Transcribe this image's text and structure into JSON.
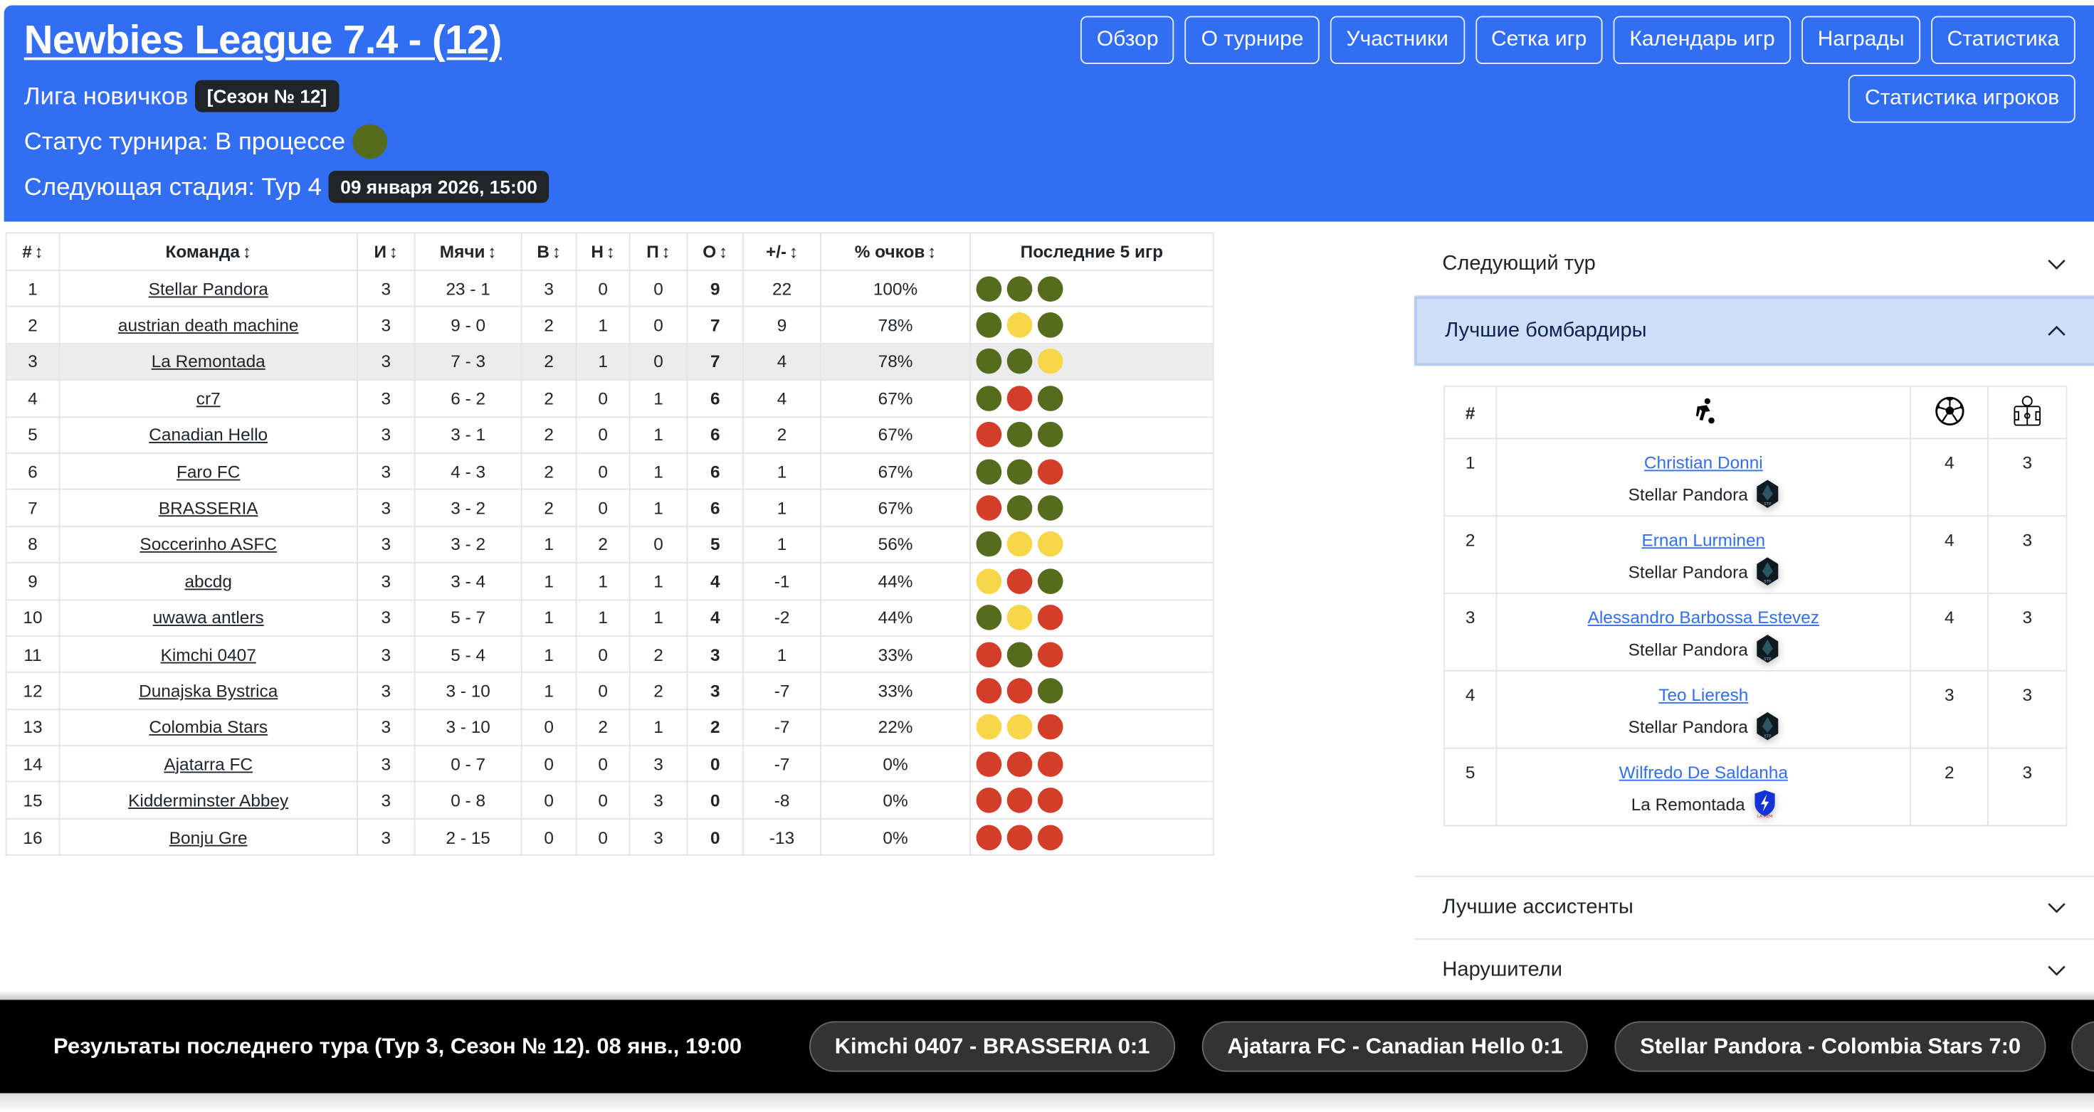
{
  "header": {
    "title": "Newbies League 7.4 - (12)",
    "subtitle": "Лига новичков",
    "season_badge": "[Сезон № 12]",
    "status_text": "Статус турнира: В процессе",
    "status_color": "#556b1e",
    "next_stage_text": "Следующая стадия: Тур 4",
    "next_stage_date": "09 января 2026, 15:00",
    "background_color": "#326ef4"
  },
  "nav": {
    "buttons": [
      "Обзор",
      "О турнире",
      "Участники",
      "Сетка игр",
      "Календарь игр",
      "Награды",
      "Статистика"
    ],
    "second_row": "Статистика игроков"
  },
  "standings": {
    "columns": [
      "#",
      "Команда",
      "И",
      "Мячи",
      "В",
      "Н",
      "П",
      "О",
      "+/-",
      "% очков",
      "Последние 5 игр"
    ],
    "sort_icon": "↕",
    "form_colors": {
      "W": "#556b1e",
      "D": "#f7d64a",
      "L": "#d43d2a"
    },
    "highlighted_row": 3,
    "rows": [
      {
        "pos": "1",
        "team": "Stellar Pandora",
        "played": "3",
        "goals": "23 - 1",
        "w": "3",
        "d": "0",
        "l": "0",
        "pts": "9",
        "diff": "22",
        "pct": "100%",
        "form": [
          "W",
          "W",
          "W"
        ]
      },
      {
        "pos": "2",
        "team": "austrian death machine",
        "played": "3",
        "goals": "9 - 0",
        "w": "2",
        "d": "1",
        "l": "0",
        "pts": "7",
        "diff": "9",
        "pct": "78%",
        "form": [
          "W",
          "D",
          "W"
        ]
      },
      {
        "pos": "3",
        "team": "La Remontada",
        "played": "3",
        "goals": "7 - 3",
        "w": "2",
        "d": "1",
        "l": "0",
        "pts": "7",
        "diff": "4",
        "pct": "78%",
        "form": [
          "W",
          "W",
          "D"
        ]
      },
      {
        "pos": "4",
        "team": "cr7",
        "played": "3",
        "goals": "6 - 2",
        "w": "2",
        "d": "0",
        "l": "1",
        "pts": "6",
        "diff": "4",
        "pct": "67%",
        "form": [
          "W",
          "L",
          "W"
        ]
      },
      {
        "pos": "5",
        "team": "Canadian Hello",
        "played": "3",
        "goals": "3 - 1",
        "w": "2",
        "d": "0",
        "l": "1",
        "pts": "6",
        "diff": "2",
        "pct": "67%",
        "form": [
          "L",
          "W",
          "W"
        ]
      },
      {
        "pos": "6",
        "team": "Faro FC",
        "played": "3",
        "goals": "4 - 3",
        "w": "2",
        "d": "0",
        "l": "1",
        "pts": "6",
        "diff": "1",
        "pct": "67%",
        "form": [
          "W",
          "W",
          "L"
        ]
      },
      {
        "pos": "7",
        "team": "BRASSERIA",
        "played": "3",
        "goals": "3 - 2",
        "w": "2",
        "d": "0",
        "l": "1",
        "pts": "6",
        "diff": "1",
        "pct": "67%",
        "form": [
          "L",
          "W",
          "W"
        ]
      },
      {
        "pos": "8",
        "team": "Soccerinho ASFC",
        "played": "3",
        "goals": "3 - 2",
        "w": "1",
        "d": "2",
        "l": "0",
        "pts": "5",
        "diff": "1",
        "pct": "56%",
        "form": [
          "W",
          "D",
          "D"
        ]
      },
      {
        "pos": "9",
        "team": "abcdg",
        "played": "3",
        "goals": "3 - 4",
        "w": "1",
        "d": "1",
        "l": "1",
        "pts": "4",
        "diff": "-1",
        "pct": "44%",
        "form": [
          "D",
          "L",
          "W"
        ]
      },
      {
        "pos": "10",
        "team": "uwawa antlers",
        "played": "3",
        "goals": "5 - 7",
        "w": "1",
        "d": "1",
        "l": "1",
        "pts": "4",
        "diff": "-2",
        "pct": "44%",
        "form": [
          "W",
          "D",
          "L"
        ]
      },
      {
        "pos": "11",
        "team": "Kimchi 0407",
        "played": "3",
        "goals": "5 - 4",
        "w": "1",
        "d": "0",
        "l": "2",
        "pts": "3",
        "diff": "1",
        "pct": "33%",
        "form": [
          "L",
          "W",
          "L"
        ]
      },
      {
        "pos": "12",
        "team": "Dunajska Bystrica",
        "played": "3",
        "goals": "3 - 10",
        "w": "1",
        "d": "0",
        "l": "2",
        "pts": "3",
        "diff": "-7",
        "pct": "33%",
        "form": [
          "L",
          "L",
          "W"
        ]
      },
      {
        "pos": "13",
        "team": "Colombia Stars",
        "played": "3",
        "goals": "3 - 10",
        "w": "0",
        "d": "2",
        "l": "1",
        "pts": "2",
        "diff": "-7",
        "pct": "22%",
        "form": [
          "D",
          "D",
          "L"
        ]
      },
      {
        "pos": "14",
        "team": "Ajatarra FC",
        "played": "3",
        "goals": "0 - 7",
        "w": "0",
        "d": "0",
        "l": "3",
        "pts": "0",
        "diff": "-7",
        "pct": "0%",
        "form": [
          "L",
          "L",
          "L"
        ]
      },
      {
        "pos": "15",
        "team": "Kidderminster Abbey",
        "played": "3",
        "goals": "0 - 8",
        "w": "0",
        "d": "0",
        "l": "3",
        "pts": "0",
        "diff": "-8",
        "pct": "0%",
        "form": [
          "L",
          "L",
          "L"
        ]
      },
      {
        "pos": "16",
        "team": "Bonju Gre",
        "played": "3",
        "goals": "2 - 15",
        "w": "0",
        "d": "0",
        "l": "3",
        "pts": "0",
        "diff": "-13",
        "pct": "0%",
        "form": [
          "L",
          "L",
          "L"
        ]
      }
    ]
  },
  "accordion": {
    "items": [
      {
        "label": "Следующий тур",
        "open": false
      },
      {
        "label": "Лучшие бомбардиры",
        "open": true
      },
      {
        "label": "Лучшие ассистенты",
        "open": false
      },
      {
        "label": "Нарушители",
        "open": false
      }
    ],
    "scorers": {
      "columns": [
        "#",
        "player-kicking-icon",
        "soccer-ball-icon",
        "pitch-matches-icon"
      ],
      "rows": [
        {
          "pos": "1",
          "player": "Christian Donni",
          "team": "Stellar Pandora",
          "badge": "stp-badge",
          "goals": "4",
          "matches": "3"
        },
        {
          "pos": "2",
          "player": "Ernan Lurminen",
          "team": "Stellar Pandora",
          "badge": "stp-badge",
          "goals": "4",
          "matches": "3"
        },
        {
          "pos": "3",
          "player": "Alessandro Barbossa Estevez",
          "team": "Stellar Pandora",
          "badge": "stp-badge",
          "goals": "4",
          "matches": "3"
        },
        {
          "pos": "4",
          "player": "Teo Lieresh",
          "team": "Stellar Pandora",
          "badge": "stp-badge",
          "goals": "3",
          "matches": "3"
        },
        {
          "pos": "5",
          "player": "Wilfredo De Saldanha",
          "team": "La Remontada",
          "badge": "lightning-shield-badge",
          "goals": "2",
          "matches": "3"
        }
      ]
    }
  },
  "ticker": {
    "label": "Результаты последнего тура (Тур 3, Сезон № 12). 08 янв., 19:00",
    "results": [
      "Kimchi 0407 - BRASSERIA 0:1",
      "Ajatarra FC - Canadian Hello 0:1",
      "Stellar Pandora - Colombia Stars 7:0"
    ]
  }
}
